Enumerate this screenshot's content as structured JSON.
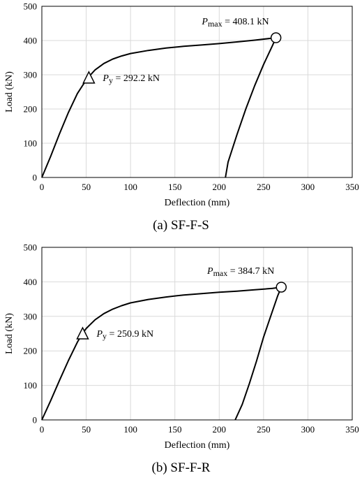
{
  "chart_data": [
    {
      "type": "line",
      "caption": "(a) SF-F-S",
      "xlabel": "Deflection (mm)",
      "ylabel": "Load (kN)",
      "xlim": [
        0,
        350
      ],
      "ylim": [
        0,
        500
      ],
      "xticks": [
        0,
        50,
        100,
        150,
        200,
        250,
        300,
        350
      ],
      "yticks": [
        0,
        100,
        200,
        300,
        400,
        500
      ],
      "grid": true,
      "series": [
        {
          "x": [
            0,
            10,
            20,
            30,
            40,
            50,
            55,
            60,
            70,
            80,
            90,
            100,
            120,
            140,
            160,
            180,
            200,
            220,
            240,
            264,
            260,
            250,
            240,
            230,
            220,
            210,
            207
          ],
          "y": [
            0,
            62,
            128,
            190,
            245,
            285,
            300,
            314,
            333,
            346,
            355,
            362,
            371,
            378,
            383,
            387,
            391,
            396,
            401,
            408.1,
            385,
            330,
            268,
            200,
            125,
            45,
            0
          ]
        }
      ],
      "annotations": [
        {
          "marker": "triangle",
          "x": 53,
          "y": 292.2,
          "symbol": "P",
          "subscript": "y",
          "text": " = 292.2 kN"
        },
        {
          "marker": "circle",
          "x": 264,
          "y": 408.1,
          "symbol": "P",
          "subscript": "max",
          "text": " = 408.1 kN"
        }
      ]
    },
    {
      "type": "line",
      "caption": "(b) SF-F-R",
      "xlabel": "Deflection (mm)",
      "ylabel": "Load (kN)",
      "xlim": [
        0,
        350
      ],
      "ylim": [
        0,
        500
      ],
      "xticks": [
        0,
        50,
        100,
        150,
        200,
        250,
        300,
        350
      ],
      "yticks": [
        0,
        100,
        200,
        300,
        400,
        500
      ],
      "grid": true,
      "series": [
        {
          "x": [
            0,
            10,
            20,
            30,
            40,
            46,
            50,
            60,
            70,
            80,
            90,
            100,
            120,
            140,
            160,
            180,
            200,
            220,
            240,
            260,
            270,
            266,
            258,
            250,
            242,
            234,
            226,
            218
          ],
          "y": [
            0,
            56,
            115,
            172,
            225,
            251,
            265,
            290,
            308,
            321,
            331,
            339,
            349,
            356,
            362,
            366,
            370,
            373,
            377,
            381,
            384.7,
            360,
            300,
            240,
            170,
            105,
            45,
            0
          ]
        }
      ],
      "annotations": [
        {
          "marker": "triangle",
          "x": 46,
          "y": 250.9,
          "symbol": "P",
          "subscript": "y",
          "text": " = 250.9 kN"
        },
        {
          "marker": "circle",
          "x": 270,
          "y": 384.7,
          "symbol": "P",
          "subscript": "max",
          "text": " = 384.7 kN"
        }
      ]
    }
  ]
}
